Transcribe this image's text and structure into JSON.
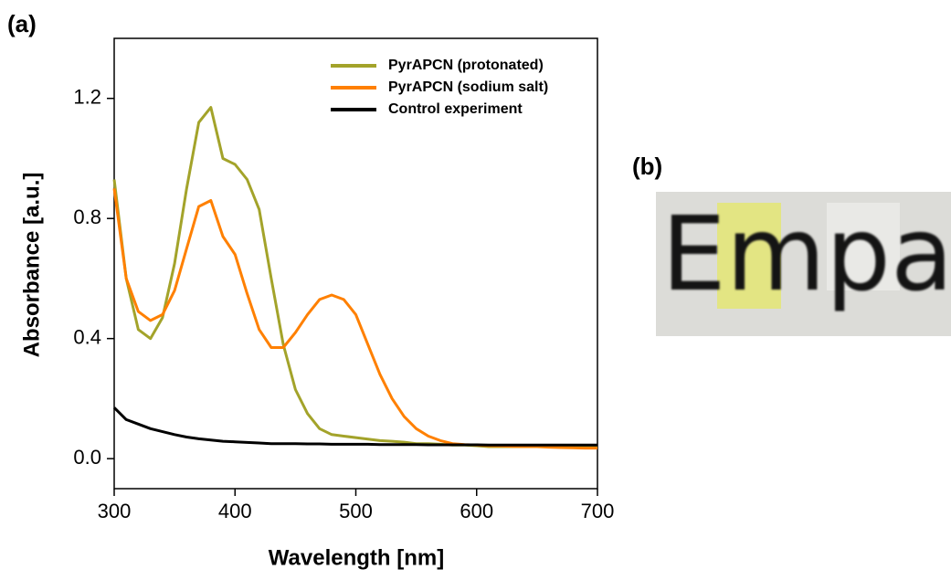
{
  "chart_data": {
    "type": "line",
    "panel_label": "(a)",
    "xlabel": "Wavelength [nm]",
    "ylabel": "Absorbance [a.u.]",
    "x": [
      300,
      310,
      320,
      330,
      340,
      350,
      360,
      370,
      380,
      390,
      400,
      410,
      420,
      430,
      440,
      450,
      460,
      470,
      480,
      490,
      500,
      510,
      520,
      530,
      540,
      550,
      560,
      570,
      580,
      590,
      600,
      610,
      620,
      630,
      640,
      650,
      660,
      670,
      680,
      690,
      700
    ],
    "series": [
      {
        "name": "PyrAPCN (protonated)",
        "color": "#a3a32a",
        "values": [
          0.93,
          0.6,
          0.43,
          0.4,
          0.47,
          0.65,
          0.9,
          1.12,
          1.17,
          1.0,
          0.98,
          0.93,
          0.83,
          0.6,
          0.38,
          0.23,
          0.15,
          0.1,
          0.08,
          0.075,
          0.07,
          0.065,
          0.06,
          0.058,
          0.055,
          0.05,
          0.05,
          0.048,
          0.045,
          0.045,
          0.043,
          0.04,
          0.04,
          0.04,
          0.04,
          0.04,
          0.04,
          0.04,
          0.04,
          0.04,
          0.04
        ]
      },
      {
        "name": "PyrAPCN (sodium salt)",
        "color": "#ff8000",
        "values": [
          0.9,
          0.6,
          0.49,
          0.46,
          0.48,
          0.56,
          0.7,
          0.84,
          0.86,
          0.74,
          0.68,
          0.55,
          0.43,
          0.37,
          0.37,
          0.42,
          0.48,
          0.53,
          0.545,
          0.53,
          0.48,
          0.38,
          0.28,
          0.2,
          0.14,
          0.1,
          0.075,
          0.06,
          0.05,
          0.047,
          0.045,
          0.043,
          0.042,
          0.041,
          0.04,
          0.04,
          0.038,
          0.037,
          0.036,
          0.035,
          0.035
        ]
      },
      {
        "name": "Control experiment",
        "color": "#000000",
        "values": [
          0.17,
          0.13,
          0.115,
          0.1,
          0.09,
          0.08,
          0.072,
          0.066,
          0.062,
          0.058,
          0.056,
          0.054,
          0.052,
          0.05,
          0.05,
          0.05,
          0.049,
          0.049,
          0.048,
          0.048,
          0.048,
          0.048,
          0.047,
          0.047,
          0.047,
          0.047,
          0.046,
          0.046,
          0.046,
          0.046,
          0.046,
          0.045,
          0.045,
          0.045,
          0.045,
          0.045,
          0.045,
          0.045,
          0.045,
          0.045,
          0.045
        ]
      }
    ],
    "xlim": [
      300,
      700
    ],
    "xticks": [
      300,
      400,
      500,
      600,
      700
    ],
    "ylim": [
      -0.1,
      1.4
    ],
    "yticks": [
      {
        "value": 0,
        "label": "0.0"
      },
      0.4,
      0.8,
      1.2
    ],
    "legend": "upper right",
    "grid": false
  },
  "panel_b": {
    "label": "(b)",
    "photo_text": "Empa"
  }
}
